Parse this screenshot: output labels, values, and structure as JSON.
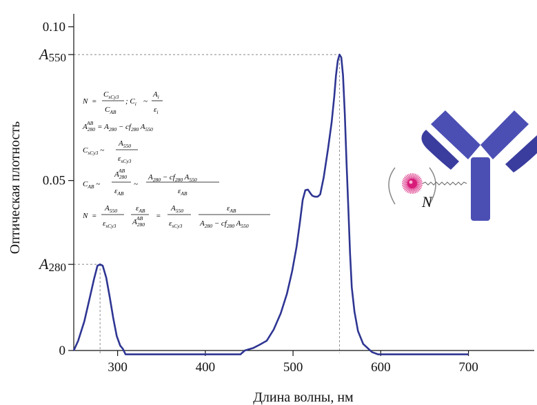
{
  "chart_data": {
    "type": "line",
    "xlabel": "Длина волны, нм",
    "ylabel": "Оптическая плотность",
    "xlim": [
      250,
      775
    ],
    "ylim": [
      0,
      0.104
    ],
    "x_ticks": [
      {
        "value": 300,
        "label": "300"
      },
      {
        "value": 400,
        "label": "400"
      },
      {
        "value": 500,
        "label": "500"
      },
      {
        "value": 600,
        "label": "600"
      },
      {
        "value": 700,
        "label": "700"
      }
    ],
    "y_ticks": [
      {
        "value": 0.0,
        "label": "0"
      },
      {
        "value": 0.0525,
        "label": "0.05"
      },
      {
        "value": 0.1,
        "label": "0.10"
      }
    ],
    "reference_levels": [
      {
        "base": "A",
        "sub": "550",
        "y": 0.0914,
        "x": 553
      },
      {
        "base": "A",
        "sub": "280",
        "y": 0.0266,
        "x": 280
      }
    ],
    "series": [
      {
        "color": "#2e3592",
        "points": [
          [
            250,
            0.0
          ],
          [
            255,
            0.003
          ],
          [
            262,
            0.009
          ],
          [
            268,
            0.016
          ],
          [
            273,
            0.022
          ],
          [
            277,
            0.0262
          ],
          [
            280,
            0.0266
          ],
          [
            283,
            0.0262
          ],
          [
            287,
            0.0225
          ],
          [
            291,
            0.0165
          ],
          [
            295,
            0.01
          ],
          [
            299,
            0.0045
          ],
          [
            303,
            0.0015
          ],
          [
            306,
            0.0005
          ],
          [
            309,
            -0.0012
          ],
          [
            320,
            -0.0012
          ],
          [
            400,
            -0.0012
          ],
          [
            440,
            -0.0012
          ],
          [
            445,
            0.0
          ],
          [
            455,
            0.0008
          ],
          [
            462,
            0.0018
          ],
          [
            470,
            0.003
          ],
          [
            478,
            0.0065
          ],
          [
            486,
            0.0115
          ],
          [
            493,
            0.0175
          ],
          [
            499,
            0.0245
          ],
          [
            504,
            0.032
          ],
          [
            508,
            0.04
          ],
          [
            511,
            0.0465
          ],
          [
            514,
            0.0495
          ],
          [
            517,
            0.0497
          ],
          [
            520,
            0.0485
          ],
          [
            522,
            0.0478
          ],
          [
            525,
            0.0475
          ],
          [
            528,
            0.0475
          ],
          [
            531,
            0.0482
          ],
          [
            535,
            0.0535
          ],
          [
            540,
            0.0625
          ],
          [
            544,
            0.0705
          ],
          [
            547,
            0.0785
          ],
          [
            549,
            0.085
          ],
          [
            551,
            0.0895
          ],
          [
            553,
            0.0914
          ],
          [
            555,
            0.0905
          ],
          [
            557,
            0.085
          ],
          [
            559,
            0.073
          ],
          [
            561,
            0.058
          ],
          [
            563,
            0.044
          ],
          [
            565,
            0.03
          ],
          [
            567,
            0.0195
          ],
          [
            570,
            0.012
          ],
          [
            574,
            0.006
          ],
          [
            580,
            0.002
          ],
          [
            590,
            -0.0005
          ],
          [
            597,
            -0.0012
          ],
          [
            650,
            -0.0012
          ],
          [
            700,
            -0.0012
          ]
        ]
      }
    ]
  },
  "formulas": [
    {
      "name": "formula-N-concentration",
      "text": "N = C_sCy3/C_AB; C_i ~ A_i/ε_i"
    },
    {
      "name": "formula-A280-corrected",
      "text": "A_280^AB = A_280 − cf_280 A_550"
    },
    {
      "name": "formula-C-sCy3",
      "text": "C_sCy3 ~ A_550/ε_sCy3"
    },
    {
      "name": "formula-C-AB",
      "text": "C_AB ~ A_280^AB/ε_AB ~ (A_280 − cf_280 A_550)/ε_AB"
    },
    {
      "name": "formula-N-final",
      "text": "N = (A_550/ε_sCy3)(ε_AB/A_280^AB) = (A_550/ε_sCy3)(ε_AB/(A_280 − cf_280 A_550))"
    }
  ],
  "illustration": {
    "label": "N",
    "colors": {
      "antibody": "#4b4fb4",
      "dye": "#d81b79",
      "bracket": "#888888"
    }
  }
}
